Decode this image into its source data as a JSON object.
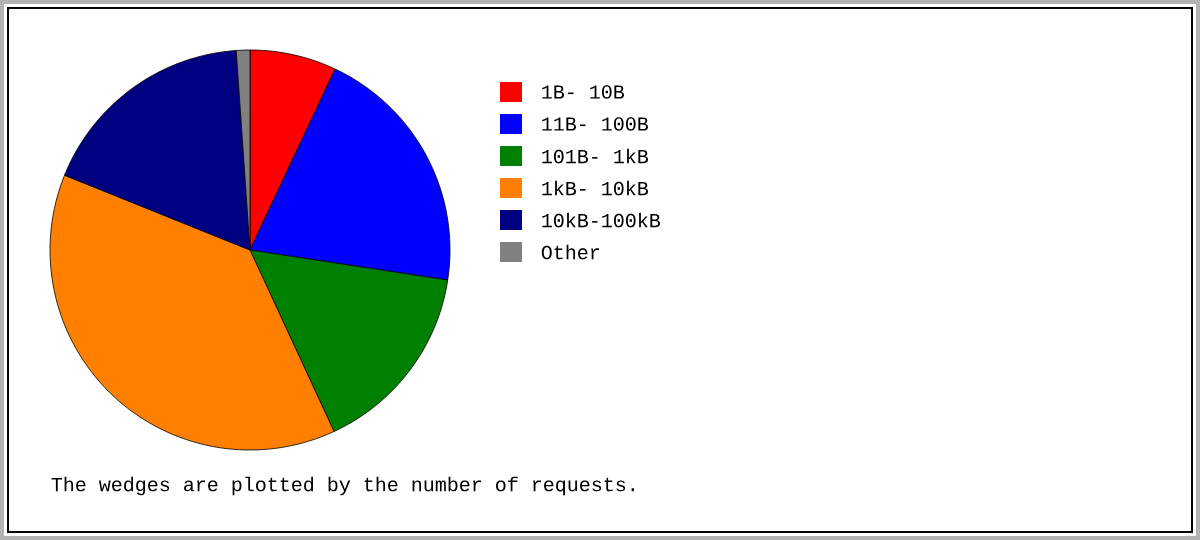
{
  "chart_data": {
    "type": "pie",
    "categories": [
      "1B- 10B",
      "11B- 100B",
      "101B- 1kB",
      "1kB- 10kB",
      "10kB-100kB",
      "Other"
    ],
    "values": [
      7,
      20.4,
      15.7,
      38,
      17.8,
      1.1
    ],
    "colors": [
      "#ff0000",
      "#0000ff",
      "#008000",
      "#ff8000",
      "#000080",
      "#808080"
    ],
    "legend": "right",
    "annotations": [
      "The wedges are plotted by the number of requests."
    ]
  }
}
